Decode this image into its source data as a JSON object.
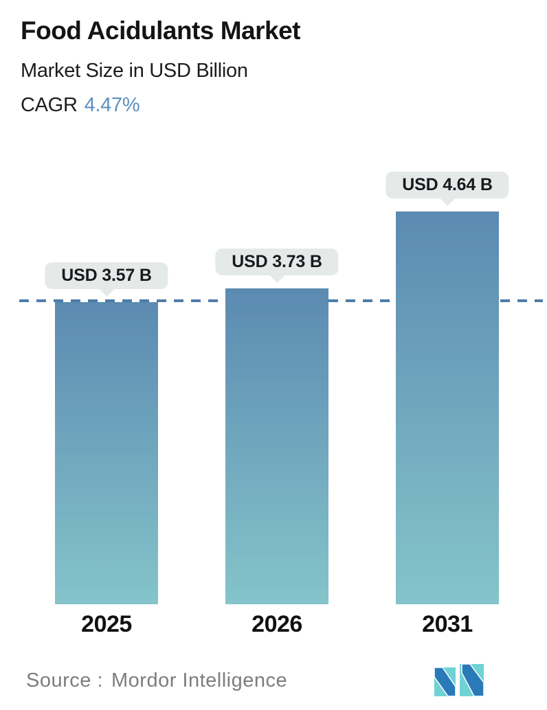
{
  "header": {
    "title": "Food Acidulants Market",
    "subtitle": "Market Size in USD Billion",
    "cagr_label": "CAGR",
    "cagr_value": "4.47%"
  },
  "chart_data": {
    "type": "bar",
    "title": "Food Acidulants Market",
    "subtitle": "Market Size in USD Billion",
    "cagr_pct": 4.47,
    "unit": "USD Billion",
    "categories": [
      "2025",
      "2026",
      "2031"
    ],
    "values": [
      3.57,
      3.73,
      4.64
    ],
    "value_labels": [
      "USD 3.57 B",
      "USD 3.73 B",
      "USD 4.64 B"
    ],
    "reference_line": {
      "value": 3.57,
      "style": "dashed"
    },
    "xlabel": "",
    "ylabel": "Market Size in USD Billion",
    "ylim": [
      0,
      7.1
    ],
    "grid": false,
    "legend": "none"
  },
  "footer": {
    "source_label": "Source :",
    "source_name": "Mordor Intelligence",
    "logo": "mordor-intelligence-logo"
  },
  "colors": {
    "accent_blue": "#5b8fc0",
    "bar_top": "#5c8ab1",
    "bar_bottom": "#84c4ca",
    "dashed_line": "#4e7ca8",
    "bubble_bg": "#e5eae9",
    "source_gray": "#7d7d7d",
    "logo_teal": "#6fd2d5",
    "logo_blue": "#2a7ab8"
  }
}
